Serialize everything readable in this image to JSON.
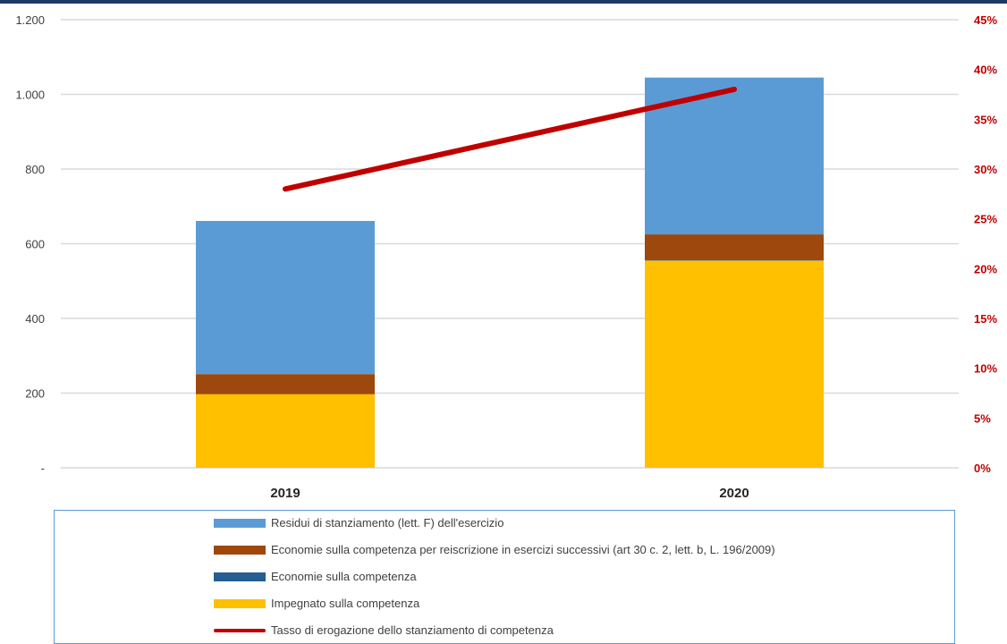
{
  "chart_data": {
    "type": "bar",
    "stacked": true,
    "categories": [
      "2019",
      "2020"
    ],
    "series": [
      {
        "name": "Impegnato sulla competenza",
        "values": [
          197,
          555
        ],
        "color": "#ffc000",
        "axis": "left"
      },
      {
        "name": "Economie sulla competenza",
        "values": [
          0,
          2
        ],
        "color": "#255e91",
        "axis": "left"
      },
      {
        "name": "Economie sulla competenza per reiscrizione in esercizi successivi (art 30 c. 2, lett. b, L. 196/2009)",
        "values": [
          54,
          68
        ],
        "color": "#9e480e",
        "axis": "left"
      },
      {
        "name": "Residui di stanziamento (lett. F) dell'esercizio",
        "values": [
          410,
          420
        ],
        "color": "#5b9bd5",
        "axis": "left"
      },
      {
        "name": "Tasso di erogazione dello stanziamento di competenza",
        "type": "line",
        "values": [
          0.28,
          0.38
        ],
        "color": "#c00000",
        "axis": "right"
      }
    ],
    "ylim": [
      0,
      1200
    ],
    "y2lim": [
      0,
      0.45
    ],
    "left_ticks": [
      "-",
      "200",
      "400",
      "600",
      "800",
      "1.000",
      "1.200"
    ],
    "right_ticks": [
      "0%",
      "5%",
      "10%",
      "15%",
      "20%",
      "25%",
      "30%",
      "35%",
      "40%",
      "45%"
    ],
    "grid": true,
    "legend_position": "bottom"
  },
  "legend": [
    {
      "label": "Residui di stanziamento (lett. F) dell'esercizio",
      "color": "#5b9bd5",
      "kind": "swatch"
    },
    {
      "label": "Economie sulla competenza per reiscrizione in esercizi successivi (art 30 c. 2, lett. b, L. 196/2009)",
      "color": "#9e480e",
      "kind": "swatch"
    },
    {
      "label": "Economie sulla competenza",
      "color": "#255e91",
      "kind": "swatch"
    },
    {
      "label": "Impegnato sulla competenza",
      "color": "#ffc000",
      "kind": "swatch"
    },
    {
      "label": "Tasso di erogazione dello stanziamento di competenza",
      "color": "#c00000",
      "kind": "line"
    }
  ]
}
